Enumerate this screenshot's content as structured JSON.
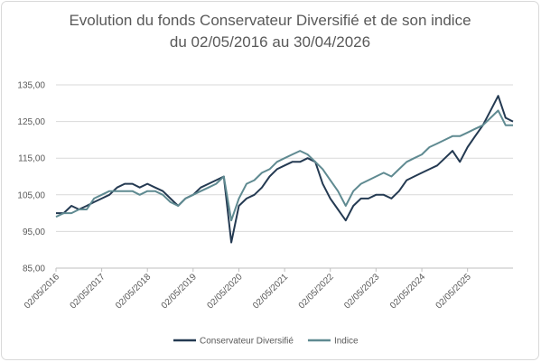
{
  "chart_data": {
    "type": "line",
    "title": "Evolution du fonds Conservateur Diversifié et de son indice",
    "subtitle": "du 02/05/2016 au 30/04/2026",
    "x": [
      "02/05/2016",
      "02/07/2016",
      "02/09/2016",
      "02/11/2016",
      "02/01/2017",
      "02/03/2017",
      "02/05/2017",
      "02/07/2017",
      "02/09/2017",
      "02/11/2017",
      "02/01/2018",
      "02/03/2018",
      "02/05/2018",
      "02/07/2018",
      "02/09/2018",
      "02/11/2018",
      "02/01/2019",
      "02/03/2019",
      "02/05/2019",
      "02/07/2019",
      "02/09/2019",
      "02/11/2019",
      "02/01/2020",
      "02/03/2020",
      "02/05/2020",
      "02/07/2020",
      "02/09/2020",
      "02/11/2020",
      "02/01/2021",
      "02/03/2021",
      "02/05/2021",
      "02/07/2021",
      "02/09/2021",
      "02/11/2021",
      "02/01/2022",
      "02/03/2022",
      "02/05/2022",
      "02/07/2022",
      "02/09/2022",
      "02/11/2022",
      "02/01/2023",
      "02/03/2023",
      "02/05/2023",
      "02/07/2023",
      "02/09/2023",
      "02/11/2023",
      "02/01/2024",
      "02/03/2024",
      "02/05/2024",
      "02/07/2024",
      "02/09/2024",
      "02/11/2024",
      "02/01/2025",
      "02/03/2025",
      "02/05/2025",
      "02/07/2025",
      "02/09/2025",
      "02/11/2025",
      "02/01/2026",
      "02/03/2026",
      "30/04/2026"
    ],
    "series": [
      {
        "name": "Conservateur Diversifié",
        "color": "#243a52",
        "values": [
          100,
          100,
          102,
          101,
          102,
          103,
          104,
          105,
          107,
          108,
          108,
          107,
          108,
          107,
          106,
          104,
          102,
          104,
          105,
          107,
          108,
          109,
          110,
          92,
          102,
          104,
          105,
          107,
          110,
          112,
          113,
          114,
          114,
          115,
          114,
          108,
          104,
          101,
          98,
          102,
          104,
          104,
          105,
          105,
          104,
          106,
          109,
          110,
          111,
          112,
          113,
          115,
          117,
          114,
          118,
          121,
          124,
          128,
          132,
          126,
          125
        ]
      },
      {
        "name": "Indice",
        "color": "#5f8a91",
        "values": [
          99,
          100,
          100,
          101,
          101,
          104,
          105,
          106,
          106,
          106,
          106,
          105,
          106,
          106,
          105,
          103,
          102,
          104,
          105,
          106,
          107,
          108,
          110,
          98,
          104,
          108,
          109,
          111,
          112,
          114,
          115,
          116,
          117,
          116,
          114,
          112,
          109,
          106,
          102,
          106,
          108,
          109,
          110,
          111,
          110,
          112,
          114,
          115,
          116,
          118,
          119,
          120,
          121,
          121,
          122,
          123,
          124,
          126,
          128,
          124,
          124
        ]
      }
    ],
    "xlim": [
      "02/05/2016",
      "30/04/2026"
    ],
    "xticks": [
      "02/05/2016",
      "02/05/2017",
      "02/05/2018",
      "02/05/2019",
      "02/05/2020",
      "02/05/2021",
      "02/05/2022",
      "02/05/2023",
      "02/05/2024",
      "02/05/2025"
    ],
    "ylim": [
      85,
      135
    ],
    "yticks": [
      {
        "value": 85,
        "label": "85,00"
      },
      {
        "value": 95,
        "label": "95,00"
      },
      {
        "value": 105,
        "label": "105,00"
      },
      {
        "value": 115,
        "label": "115,00"
      },
      {
        "value": 125,
        "label": "125,00"
      },
      {
        "value": 135,
        "label": "135,00"
      }
    ],
    "grid": true,
    "legend": "bottom"
  }
}
